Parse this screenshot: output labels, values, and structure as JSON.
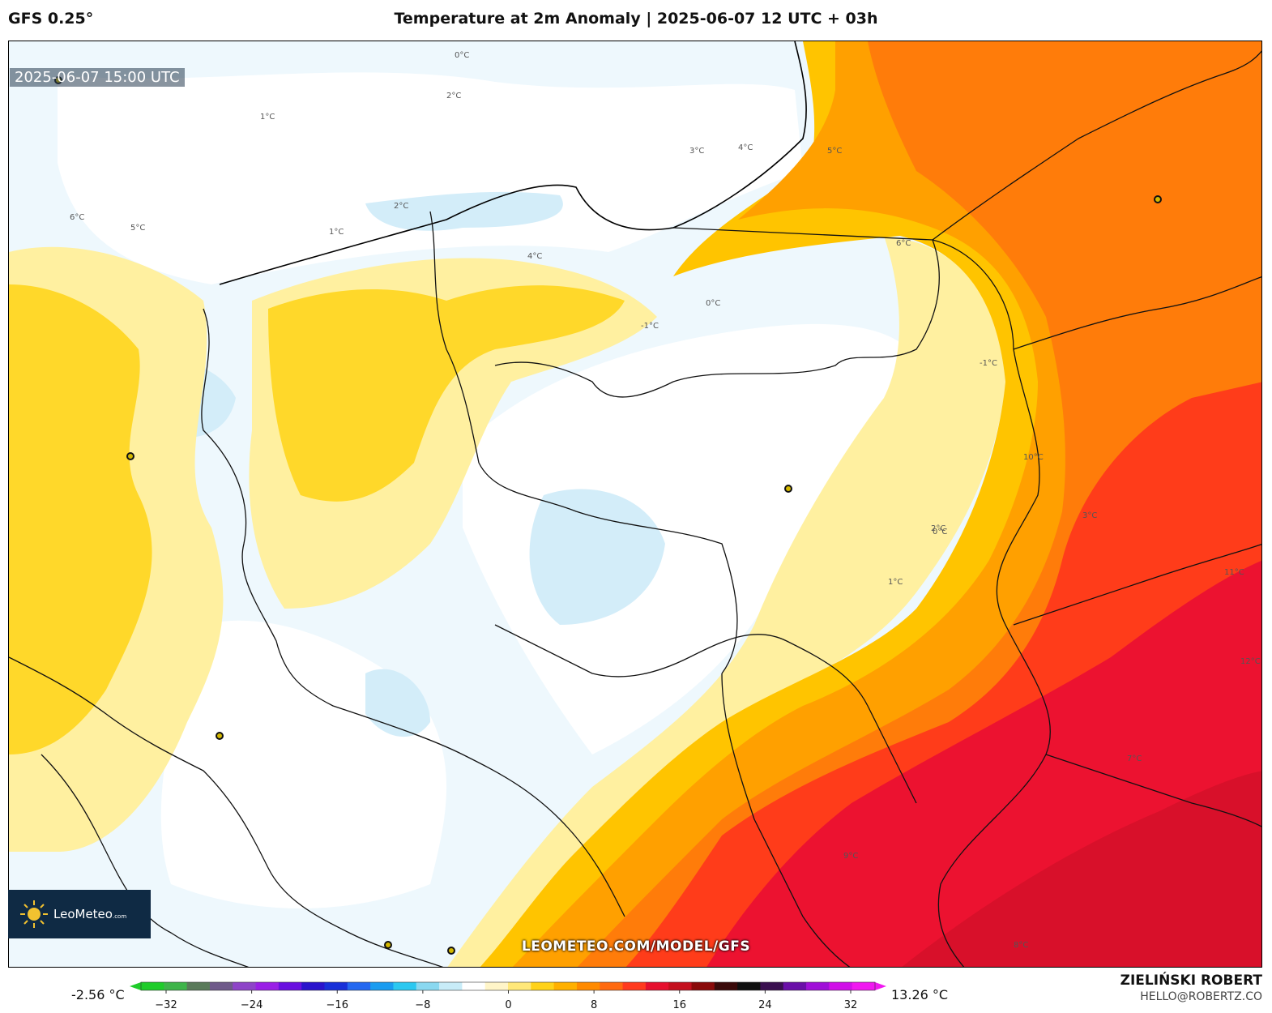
{
  "header": {
    "model": "GFS 0.25°",
    "title": "Temperature at 2m Anomaly | 2025-06-07 12 UTC + 03h"
  },
  "map": {
    "timestamp": "2025-06-07 15:00 UTC",
    "watermark_url": "LEOMETEO.COM/MODEL/GFS",
    "contour_labels": [
      "0°C",
      "1°C",
      "2°C",
      "3°C",
      "4°C",
      "5°C",
      "6°C",
      "-1°C",
      "2°C",
      "1°C",
      "0°C",
      "-1°C",
      "4°C",
      "5°C",
      "6°C",
      "0°C",
      "1°C",
      "2°C",
      "3°C",
      "10°C",
      "11°C",
      "12°C",
      "9°C",
      "8°C",
      "7°C"
    ]
  },
  "logo": {
    "brand": "LeoMeteo",
    "suffix": ".com"
  },
  "colorbar": {
    "min_value": "-2.56 °C",
    "max_value": "13.26 °C",
    "ticks": [
      "−32",
      "−24",
      "−16",
      "−8",
      "0",
      "8",
      "16",
      "24",
      "32"
    ],
    "colors": [
      "#1fcc2a",
      "#3fb44a",
      "#5a7a5a",
      "#6f5a8a",
      "#8e44c8",
      "#9a1fe6",
      "#6a10e0",
      "#2a14cc",
      "#1830d8",
      "#2468f0",
      "#1a9cf0",
      "#2cc8f0",
      "#8ad8f0",
      "#c8ecf8",
      "#ffffff",
      "#fff5c8",
      "#ffe87a",
      "#ffd21a",
      "#ffb000",
      "#ff8a00",
      "#ff6a10",
      "#ff3a1e",
      "#e6102e",
      "#c4101e",
      "#8a0a0a",
      "#3a0a0a",
      "#101010",
      "#3a1050",
      "#6a10a8",
      "#a010d8",
      "#d010e8",
      "#f018f0"
    ]
  },
  "author": {
    "name": "ZIELIŃSKI ROBERT",
    "email": "HELLO@ROBERTZ.CO"
  }
}
